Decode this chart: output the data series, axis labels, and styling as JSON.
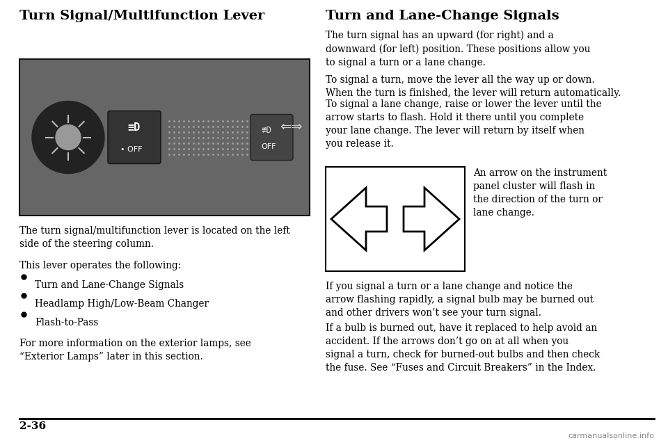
{
  "bg_color": "#ffffff",
  "page_num": "2-36",
  "watermark": "carmanualsonline.info",
  "left_title": "Turn Signal/Multifunction Lever",
  "left_body1": "The turn signal/multifunction lever is located on the left\nside of the steering column.",
  "left_body2": "This lever operates the following:",
  "bullet_items": [
    "Turn and Lane-Change Signals",
    "Headlamp High/Low-Beam Changer",
    "Flash-to-Pass"
  ],
  "left_body3": "For more information on the exterior lamps, see\n“Exterior Lamps” later in this section.",
  "right_title": "Turn and Lane-Change Signals",
  "right_para1": "The turn signal has an upward (for right) and a\ndownward (for left) position. These positions allow you\nto signal a turn or a lane change.",
  "right_para2": "To signal a turn, move the lever all the way up or down.\nWhen the turn is finished, the lever will return automatically.",
  "right_para3": "To signal a lane change, raise or lower the lever until the\narrow starts to flash. Hold it there until you complete\nyour lane change. The lever will return by itself when\nyou release it.",
  "arrow_caption": "An arrow on the instrument\npanel cluster will flash in\nthe direction of the turn or\nlane change.",
  "right_para4": "If you signal a turn or a lane change and notice the\narrow flashing rapidly, a signal bulb may be burned out\nand other drivers won’t see your turn signal.",
  "right_para5": "If a bulb is burned out, have it replaced to help avoid an\naccident. If the arrows don’t go on at all when you\nsignal a turn, check for burned-out bulbs and then check\nthe fuse. See “Fuses and Circuit Breakers” in the Index.",
  "title_fontsize": 14,
  "body_fontsize": 9.8,
  "page_num_fontsize": 11
}
